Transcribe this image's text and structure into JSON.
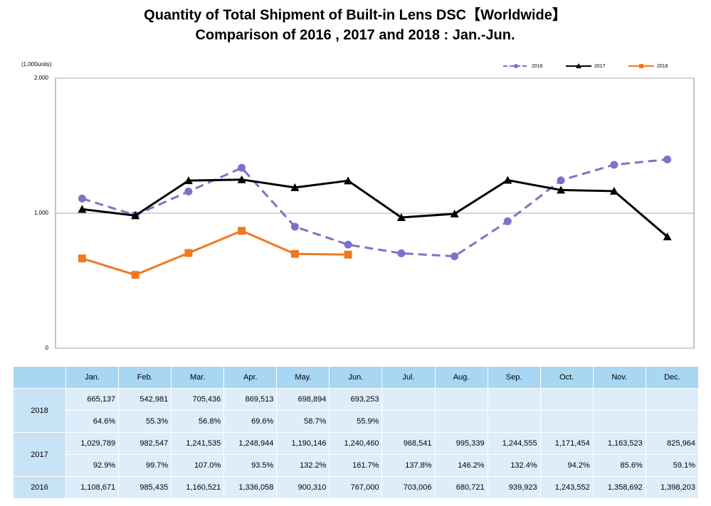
{
  "chart_data": {
    "type": "line",
    "title": "Quantity of Total Shipment of Built-in Lens DSC【Worldwide】",
    "subtitle": "Comparison of 2016 , 2017 and 2018 : Jan.-Jun.",
    "y_unit": "(1,000units)",
    "categories": [
      "Jan.",
      "Feb.",
      "Mar.",
      "Apr.",
      "May.",
      "Jun.",
      "Jul.",
      "Aug.",
      "Sep.",
      "Oct.",
      "Nov.",
      "Dec."
    ],
    "series": [
      {
        "name": "2016",
        "color": "#7b73c9",
        "dashed": true,
        "marker": "circle",
        "values": [
          1108.671,
          985.435,
          1160.521,
          1336.058,
          900.31,
          767,
          703.006,
          680.721,
          939.923,
          1243.552,
          1358.692,
          1398.203
        ],
        "value_labels": [
          "1,108,671",
          "985,435",
          "1,160,521",
          "1,336,058",
          "900,310",
          "767,000",
          "703,006",
          "680,721",
          "939,923",
          "1,243,552",
          "1,358,692",
          "1,398,203"
        ]
      },
      {
        "name": "2017",
        "color": "#000000",
        "dashed": false,
        "marker": "triangle",
        "values": [
          1029.789,
          982.547,
          1241.535,
          1248.944,
          1190.146,
          1240.46,
          968.541,
          995.339,
          1244.555,
          1171.454,
          1163.523,
          825.964
        ],
        "value_labels": [
          "1,029,789",
          "982,547",
          "1,241,535",
          "1,248,944",
          "1,190,146",
          "1,240,460",
          "968,541",
          "995,339",
          "1,244,555",
          "1,171,454",
          "1,163,523",
          "825,964"
        ]
      },
      {
        "name": "2018",
        "color": "#f07820",
        "dashed": false,
        "marker": "square",
        "values": [
          665.137,
          542.981,
          705.436,
          869.513,
          698.894,
          693.253,
          null,
          null,
          null,
          null,
          null,
          null
        ],
        "value_labels": [
          "665,137",
          "542,981",
          "705,436",
          "869,513",
          "698,894",
          "693,253",
          null,
          null,
          null,
          null,
          null,
          null
        ]
      }
    ],
    "ylim": [
      0,
      2000
    ],
    "yticks": [
      0,
      {
        "value": 1000,
        "label": "1,000"
      },
      {
        "value": 2000,
        "label": "2,000"
      }
    ],
    "grid": true,
    "legend": "top-right"
  },
  "table": {
    "ratios_2018": [
      "64.6%",
      "55.3%",
      "56.8%",
      "69.6%",
      "58.7%",
      "55.9%"
    ],
    "ratios_2017": [
      "92.9%",
      "99.7%",
      "107.0%",
      "93.5%",
      "132.2%",
      "161.7%",
      "137.8%",
      "146.2%",
      "132.4%",
      "94.2%",
      "85.6%",
      "59.1%"
    ]
  }
}
